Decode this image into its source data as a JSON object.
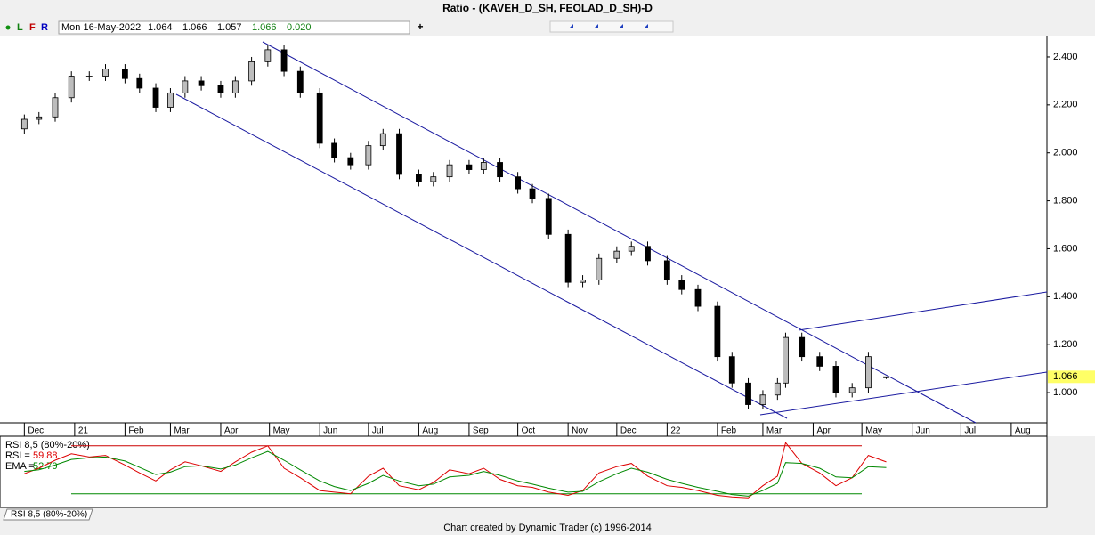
{
  "title": "Ratio - (KAVEH_D_SH, FEOLAD_D_SH)-D",
  "toolbar": [
    "L",
    "F",
    "R"
  ],
  "info": {
    "date": "Mon 16-May-2022",
    "change": {
      "value": 0.02,
      "label": "0.020"
    }
  },
  "footer": "Chart created by Dynamic Trader  (c) 1996-2014",
  "chart_data": [
    {
      "type": "candlestick",
      "x": [
        0,
        9,
        19,
        29,
        40,
        50,
        62,
        71,
        81,
        90,
        99,
        109,
        121,
        130,
        140,
        150,
        160,
        170,
        182,
        191,
        201,
        212,
        221,
        231,
        243,
        252,
        262,
        274,
        283,
        293,
        304,
        313,
        323,
        335,
        344,
        354,
        365,
        374,
        384,
        396,
        405,
        415,
        427,
        436,
        446,
        455,
        464,
        469,
        479,
        490,
        500,
        510,
        520,
        531
      ],
      "open": [
        2.1,
        2.14,
        2.15,
        2.23,
        2.32,
        2.32,
        2.35,
        2.31,
        2.27,
        2.19,
        2.25,
        2.3,
        2.28,
        2.25,
        2.3,
        2.38,
        2.43,
        2.34,
        2.25,
        2.04,
        1.98,
        1.95,
        2.03,
        2.08,
        1.91,
        1.88,
        1.9,
        1.95,
        1.93,
        1.96,
        1.9,
        1.85,
        1.81,
        1.66,
        1.46,
        1.47,
        1.56,
        1.59,
        1.61,
        1.55,
        1.47,
        1.43,
        1.36,
        1.15,
        1.04,
        0.95,
        0.99,
        1.04,
        1.23,
        1.15,
        1.11,
        1.0,
        1.02,
        1.064
      ],
      "high": [
        2.16,
        2.17,
        2.25,
        2.34,
        2.34,
        2.37,
        2.37,
        2.33,
        2.29,
        2.27,
        2.32,
        2.32,
        2.3,
        2.32,
        2.4,
        2.45,
        2.45,
        2.36,
        2.27,
        2.06,
        2.0,
        2.05,
        2.1,
        2.1,
        1.93,
        1.92,
        1.97,
        1.97,
        1.98,
        1.98,
        1.92,
        1.87,
        1.83,
        1.68,
        1.49,
        1.58,
        1.61,
        1.63,
        1.63,
        1.57,
        1.49,
        1.45,
        1.38,
        1.17,
        1.06,
        1.01,
        1.06,
        1.25,
        1.25,
        1.17,
        1.13,
        1.04,
        1.17,
        1.066
      ],
      "low": [
        2.08,
        2.12,
        2.13,
        2.21,
        2.3,
        2.3,
        2.29,
        2.25,
        2.17,
        2.17,
        2.23,
        2.26,
        2.23,
        2.23,
        2.28,
        2.36,
        2.32,
        2.23,
        2.02,
        1.96,
        1.93,
        1.93,
        2.01,
        1.89,
        1.86,
        1.86,
        1.88,
        1.91,
        1.91,
        1.88,
        1.83,
        1.79,
        1.64,
        1.44,
        1.44,
        1.45,
        1.54,
        1.57,
        1.53,
        1.45,
        1.41,
        1.34,
        1.13,
        1.02,
        0.93,
        0.93,
        0.97,
        1.02,
        1.13,
        1.09,
        0.98,
        0.98,
        1.0,
        1.057
      ],
      "close": [
        2.14,
        2.15,
        2.23,
        2.32,
        2.32,
        2.35,
        2.31,
        2.27,
        2.19,
        2.25,
        2.3,
        2.28,
        2.25,
        2.3,
        2.38,
        2.43,
        2.34,
        2.25,
        2.04,
        1.98,
        1.95,
        2.03,
        2.08,
        1.91,
        1.88,
        1.9,
        1.95,
        1.93,
        1.96,
        1.9,
        1.85,
        1.81,
        1.66,
        1.46,
        1.47,
        1.56,
        1.59,
        1.61,
        1.55,
        1.47,
        1.43,
        1.36,
        1.15,
        1.04,
        0.95,
        0.99,
        1.04,
        1.23,
        1.15,
        1.11,
        1.0,
        1.02,
        1.15,
        1.066
      ],
      "up_color": "#bdbdbd",
      "down_color": "#000000",
      "xlim": [
        -15,
        630
      ],
      "xticks": [
        {
          "value": 0,
          "label": "Dec"
        },
        {
          "value": 31,
          "label": "21"
        },
        {
          "value": 62,
          "label": "Feb"
        },
        {
          "value": 90,
          "label": "Mar"
        },
        {
          "value": 121,
          "label": "Apr"
        },
        {
          "value": 151,
          "label": "May"
        },
        {
          "value": 182,
          "label": "Jun"
        },
        {
          "value": 212,
          "label": "Jul"
        },
        {
          "value": 243,
          "label": "Aug"
        },
        {
          "value": 274,
          "label": "Sep"
        },
        {
          "value": 304,
          "label": "Oct"
        },
        {
          "value": 335,
          "label": "Nov"
        },
        {
          "value": 365,
          "label": "Dec"
        },
        {
          "value": 396,
          "label": "22"
        },
        {
          "value": 427,
          "label": "Feb"
        },
        {
          "value": 455,
          "label": "Mar"
        },
        {
          "value": 486,
          "label": "Apr"
        },
        {
          "value": 516,
          "label": "May"
        },
        {
          "value": 547,
          "label": "Jun"
        },
        {
          "value": 577,
          "label": "Jul"
        },
        {
          "value": 608,
          "label": "Aug"
        }
      ],
      "ylim": [
        0.874,
        2.489
      ],
      "yticks": [
        {
          "value": 1.0,
          "label": "1.000"
        },
        {
          "value": 1.2,
          "label": "1.200"
        },
        {
          "value": 1.4,
          "label": "1.400"
        },
        {
          "value": 1.6,
          "label": "1.600"
        },
        {
          "value": 1.8,
          "label": "1.800"
        },
        {
          "value": 2.0,
          "label": "2.000"
        },
        {
          "value": 2.2,
          "label": "2.200"
        },
        {
          "value": 2.4,
          "label": "2.400"
        }
      ],
      "price_tag_color": "#ffff66"
    },
    {
      "type": "line",
      "title": "RSI 8,5 (80%-20%)",
      "x": [
        0,
        9,
        19,
        29,
        40,
        50,
        62,
        71,
        81,
        90,
        99,
        109,
        121,
        130,
        140,
        150,
        160,
        170,
        182,
        191,
        201,
        212,
        221,
        231,
        243,
        252,
        262,
        274,
        283,
        293,
        304,
        313,
        323,
        335,
        344,
        354,
        365,
        374,
        384,
        396,
        405,
        415,
        427,
        436,
        446,
        455,
        464,
        469,
        479,
        490,
        500,
        510,
        520,
        531
      ],
      "xlim": [
        -15,
        630
      ],
      "ylim": [
        3,
        92
      ],
      "levels": [
        {
          "value": 80,
          "color": "#cc0000"
        },
        {
          "value": 20,
          "color": "#008800"
        }
      ],
      "series": [
        {
          "name": "RSI =",
          "color": "#dd0000",
          "values": [
            45,
            52,
            62,
            70,
            66,
            68,
            56,
            46,
            36,
            50,
            60,
            55,
            48,
            60,
            72,
            80,
            52,
            40,
            24,
            22,
            20,
            42,
            52,
            30,
            25,
            34,
            50,
            45,
            52,
            38,
            30,
            28,
            22,
            18,
            24,
            46,
            54,
            58,
            42,
            30,
            28,
            24,
            18,
            16,
            15,
            30,
            42,
            84,
            58,
            46,
            30,
            40,
            68,
            59.88
          ]
        },
        {
          "name": "EMA =",
          "color": "#008800",
          "values": [
            48,
            50,
            56,
            63,
            65,
            66,
            61,
            53,
            44,
            47,
            54,
            55,
            51,
            56,
            65,
            73,
            62,
            50,
            36,
            29,
            24,
            33,
            43,
            36,
            30,
            32,
            41,
            43,
            48,
            43,
            36,
            32,
            27,
            22,
            23,
            35,
            45,
            52,
            47,
            38,
            33,
            28,
            23,
            19,
            17,
            24,
            33,
            59,
            58,
            52,
            41,
            40,
            54,
            52.7
          ],
          "last_value_label": "52.70"
        }
      ]
    }
  ]
}
